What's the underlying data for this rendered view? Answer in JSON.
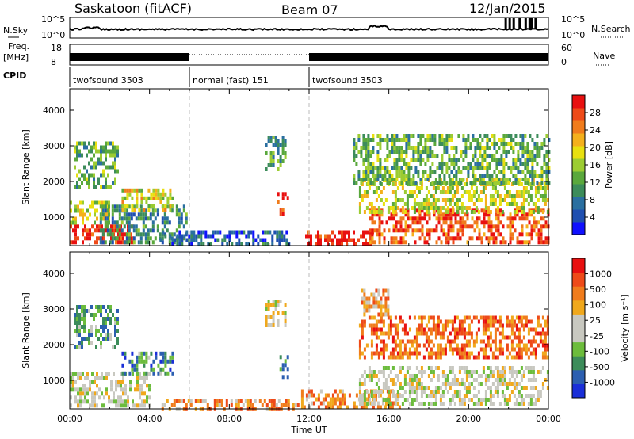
{
  "header": {
    "title": "Saskatoon (fitACF)",
    "beam": "Beam 07",
    "date": "12/Jan/2015"
  },
  "side_labels": {
    "nsky": "N.Sky",
    "freq": "Freq.",
    "freq_unit": "[MHz]",
    "cpid": "CPID",
    "nsearch": "N.Search",
    "nave": "Nave",
    "nsky_ticks": [
      "10^5",
      "10^0"
    ],
    "freq_ticks": [
      "18",
      "8"
    ],
    "nave_ticks": [
      "60",
      "0"
    ]
  },
  "cpid_segments": [
    {
      "label": "twofsound 3503",
      "start_h": 0,
      "end_h": 6
    },
    {
      "label": "normal (fast) 151",
      "start_h": 6,
      "end_h": 12
    },
    {
      "label": "twofsound 3503",
      "start_h": 12,
      "end_h": 24
    }
  ],
  "chart_data": [
    {
      "type": "heatmap",
      "name": "power",
      "xlabel": "",
      "ylabel": "Slant Range [km]",
      "x_range_hours": [
        0,
        24
      ],
      "ylim": [
        200,
        4600
      ],
      "yticks": [
        1000,
        2000,
        3000,
        4000
      ],
      "colorbar": {
        "label": "Power [dB]",
        "ticks": [
          "28",
          "24",
          "20",
          "16",
          "12",
          "8",
          "4"
        ],
        "colors": [
          "#1010ff",
          "#1f4fb0",
          "#2a6fa0",
          "#3c8c5a",
          "#5aa83c",
          "#9ccc32",
          "#e8e010",
          "#f4b01c",
          "#f07c1c",
          "#ee4a18",
          "#e81010"
        ]
      },
      "regions": [
        {
          "t0": 0.0,
          "t1": 3.2,
          "r0": 350,
          "r1": 900,
          "level": 0.95
        },
        {
          "t0": 0.0,
          "t1": 2.0,
          "r0": 900,
          "r1": 1500,
          "level": 0.55
        },
        {
          "t0": 1.5,
          "t1": 5.8,
          "r0": 350,
          "r1": 1400,
          "level": 0.3
        },
        {
          "t0": 2.6,
          "t1": 5.2,
          "r0": 1250,
          "r1": 1900,
          "level": 0.6
        },
        {
          "t0": 0.2,
          "t1": 2.4,
          "r0": 1900,
          "r1": 3200,
          "level": 0.4
        },
        {
          "t0": 4.5,
          "t1": 11.0,
          "r0": 300,
          "r1": 650,
          "level": 0.2
        },
        {
          "t0": 10.4,
          "t1": 10.9,
          "r0": 1150,
          "r1": 1750,
          "level": 0.9
        },
        {
          "t0": 9.8,
          "t1": 10.8,
          "r0": 2400,
          "r1": 3300,
          "level": 0.35
        },
        {
          "t0": 11.8,
          "t1": 15.2,
          "r0": 300,
          "r1": 650,
          "level": 0.95
        },
        {
          "t0": 15.0,
          "t1": 24.0,
          "r0": 350,
          "r1": 1300,
          "level": 0.85
        },
        {
          "t0": 14.5,
          "t1": 24.0,
          "r0": 1200,
          "r1": 2100,
          "level": 0.55
        },
        {
          "t0": 14.2,
          "t1": 24.0,
          "r0": 2000,
          "r1": 3400,
          "level": 0.4
        }
      ]
    },
    {
      "type": "heatmap",
      "name": "velocity",
      "xlabel": "Time UT",
      "ylabel": "Slant Range [km]",
      "x_range_hours": [
        0,
        24
      ],
      "ylim": [
        200,
        4600
      ],
      "yticks": [
        1000,
        2000,
        3000,
        4000
      ],
      "xticks": [
        "00:00",
        "04:00",
        "08:00",
        "12:00",
        "16:00",
        "20:00",
        "00:00"
      ],
      "colorbar": {
        "label": "Velocity [m s⁻¹]",
        "ticks": [
          "1000",
          "500",
          "100",
          "25",
          "-25",
          "-100",
          "-500",
          "-1000"
        ],
        "colors": [
          "#1a2fd8",
          "#2c5fb0",
          "#3c8c5a",
          "#6cbc3c",
          "#c8c8c0",
          "#c8c8c0",
          "#f0a81c",
          "#f07c1c",
          "#ee4a18",
          "#e81010"
        ]
      },
      "regions": [
        {
          "t0": 0.0,
          "t1": 4.0,
          "r0": 350,
          "r1": 1300,
          "level": 0.5
        },
        {
          "t0": 2.6,
          "t1": 5.2,
          "r0": 1250,
          "r1": 1900,
          "level": 0.25
        },
        {
          "t0": 0.2,
          "t1": 2.4,
          "r0": 2000,
          "r1": 3200,
          "level": 0.3
        },
        {
          "t0": 4.6,
          "t1": 11.5,
          "r0": 250,
          "r1": 550,
          "level": 0.72
        },
        {
          "t0": 10.4,
          "t1": 10.9,
          "r0": 1150,
          "r1": 1750,
          "level": 0.25
        },
        {
          "t0": 9.8,
          "t1": 10.8,
          "r0": 2600,
          "r1": 3300,
          "level": 0.5
        },
        {
          "t0": 11.6,
          "t1": 16.5,
          "r0": 300,
          "r1": 800,
          "level": 0.72
        },
        {
          "t0": 14.5,
          "t1": 24.0,
          "r0": 400,
          "r1": 1500,
          "level": 0.5
        },
        {
          "t0": 14.5,
          "t1": 24.0,
          "r0": 1700,
          "r1": 2900,
          "level": 0.78
        },
        {
          "t0": 14.6,
          "t1": 16.0,
          "r0": 2900,
          "r1": 3600,
          "level": 0.7
        }
      ]
    }
  ]
}
